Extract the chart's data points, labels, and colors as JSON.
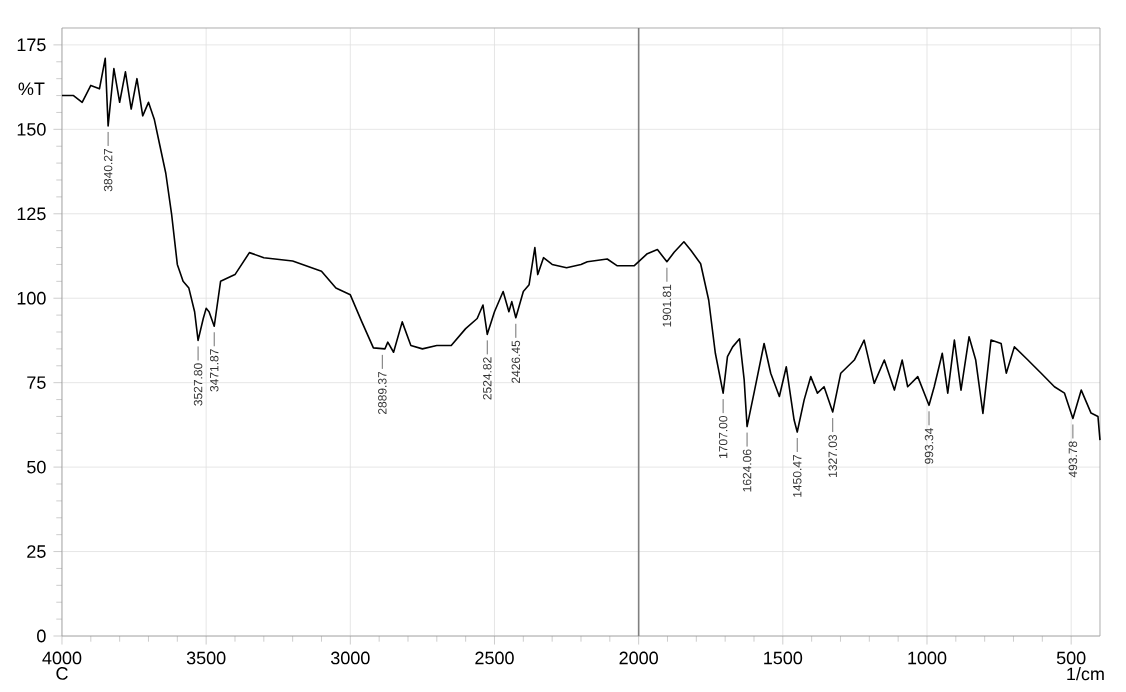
{
  "chart_data": {
    "type": "line",
    "xlabel": "1/cm",
    "ylabel": "%T",
    "xlim": [
      4000,
      400
    ],
    "ylim": [
      0,
      180
    ],
    "xticks": [
      4000,
      3500,
      3000,
      2500,
      2000,
      1500,
      1000,
      500
    ],
    "yticks": [
      0,
      25,
      50,
      75,
      100,
      125,
      150,
      175
    ],
    "grid": true,
    "line_style": "solid",
    "ref_lines": [
      {
        "axis": "x",
        "value": 2000,
        "color": "#808080"
      }
    ],
    "series": [
      {
        "color": "#000000",
        "x": [
          4000,
          3960,
          3930,
          3900,
          3870,
          3850,
          3840,
          3820,
          3800,
          3780,
          3760,
          3740,
          3720,
          3700,
          3680,
          3660,
          3640,
          3620,
          3600,
          3580,
          3560,
          3540,
          3528,
          3510,
          3500,
          3490,
          3472,
          3450,
          3400,
          3350,
          3300,
          3200,
          3100,
          3050,
          3000,
          2960,
          2920,
          2880,
          2870,
          2850,
          2820,
          2790,
          2750,
          2700,
          2650,
          2600,
          2560,
          2540,
          2525,
          2500,
          2470,
          2450,
          2440,
          2426,
          2400,
          2380,
          2360,
          2350,
          2330,
          2300,
          2250,
          2200,
          2178,
          2109,
          2074,
          2016,
          1970,
          1935,
          1902,
          1877,
          1843,
          1819,
          1785,
          1757,
          1734,
          1707,
          1692,
          1674,
          1650,
          1634,
          1624,
          1600,
          1565,
          1542,
          1512,
          1488,
          1461,
          1450,
          1426,
          1403,
          1380,
          1357,
          1327,
          1299,
          1252,
          1218,
          1183,
          1148,
          1113,
          1086,
          1067,
          1032,
          993,
          975,
          947,
          928,
          905,
          882,
          854,
          831,
          806,
          778,
          743,
          725,
          697,
          650,
          604,
          558,
          523,
          494,
          465,
          431,
          407,
          400
        ],
        "values": [
          160,
          160,
          158,
          163,
          162,
          171,
          151,
          168,
          158,
          167,
          156,
          165,
          154,
          158,
          153,
          145,
          137,
          125,
          110,
          105,
          103,
          96,
          87.5,
          94,
          97,
          96,
          91.7,
          105,
          107,
          113.5,
          112,
          111,
          108,
          103,
          101,
          93,
          85.3,
          85,
          87,
          84,
          93,
          86,
          85,
          86,
          86,
          91,
          94,
          98,
          89.3,
          96,
          102,
          96,
          99,
          94.2,
          102,
          104,
          115,
          107,
          112,
          110,
          109,
          110,
          110.8,
          111.6,
          109.6,
          109.6,
          113.2,
          114.4,
          110.8,
          113.6,
          116.7,
          114.2,
          110.2,
          99.4,
          83.7,
          71.9,
          82.7,
          85.6,
          88,
          75.8,
          62,
          71.9,
          86.6,
          77.8,
          70.9,
          79.7,
          64,
          60.4,
          69.9,
          76.8,
          71.9,
          73.8,
          66.3,
          77.8,
          81.7,
          87.6,
          74.8,
          81.7,
          72.8,
          81.7,
          73.8,
          76.8,
          68.3,
          73.8,
          83.7,
          71.9,
          87.6,
          72.8,
          88.6,
          81.7,
          65.9,
          87.6,
          86.6,
          77.8,
          85.6,
          81.7,
          77.8,
          73.8,
          71.9,
          64.4,
          72.8,
          66,
          65,
          58
        ]
      }
    ],
    "annotations": [
      {
        "text": "3840.27",
        "x": 3840,
        "y": 151
      },
      {
        "text": "3527.80",
        "x": 3528,
        "y": 87.5
      },
      {
        "text": "3471.87",
        "x": 3472,
        "y": 91.7
      },
      {
        "text": "2889.37",
        "x": 2889,
        "y": 85
      },
      {
        "text": "2524.82",
        "x": 2525,
        "y": 89.3
      },
      {
        "text": "2426.45",
        "x": 2426,
        "y": 94.2
      },
      {
        "text": "1901.81",
        "x": 1902,
        "y": 110.8
      },
      {
        "text": "1707.00",
        "x": 1707,
        "y": 71.9
      },
      {
        "text": "1624.06",
        "x": 1624,
        "y": 62
      },
      {
        "text": "1450.47",
        "x": 1450,
        "y": 60.4
      },
      {
        "text": "1327.03",
        "x": 1327,
        "y": 66.3
      },
      {
        "text": "993.34",
        "x": 993,
        "y": 68.3
      },
      {
        "text": "493.78",
        "x": 494,
        "y": 64.4
      },
      "C"
    ]
  }
}
